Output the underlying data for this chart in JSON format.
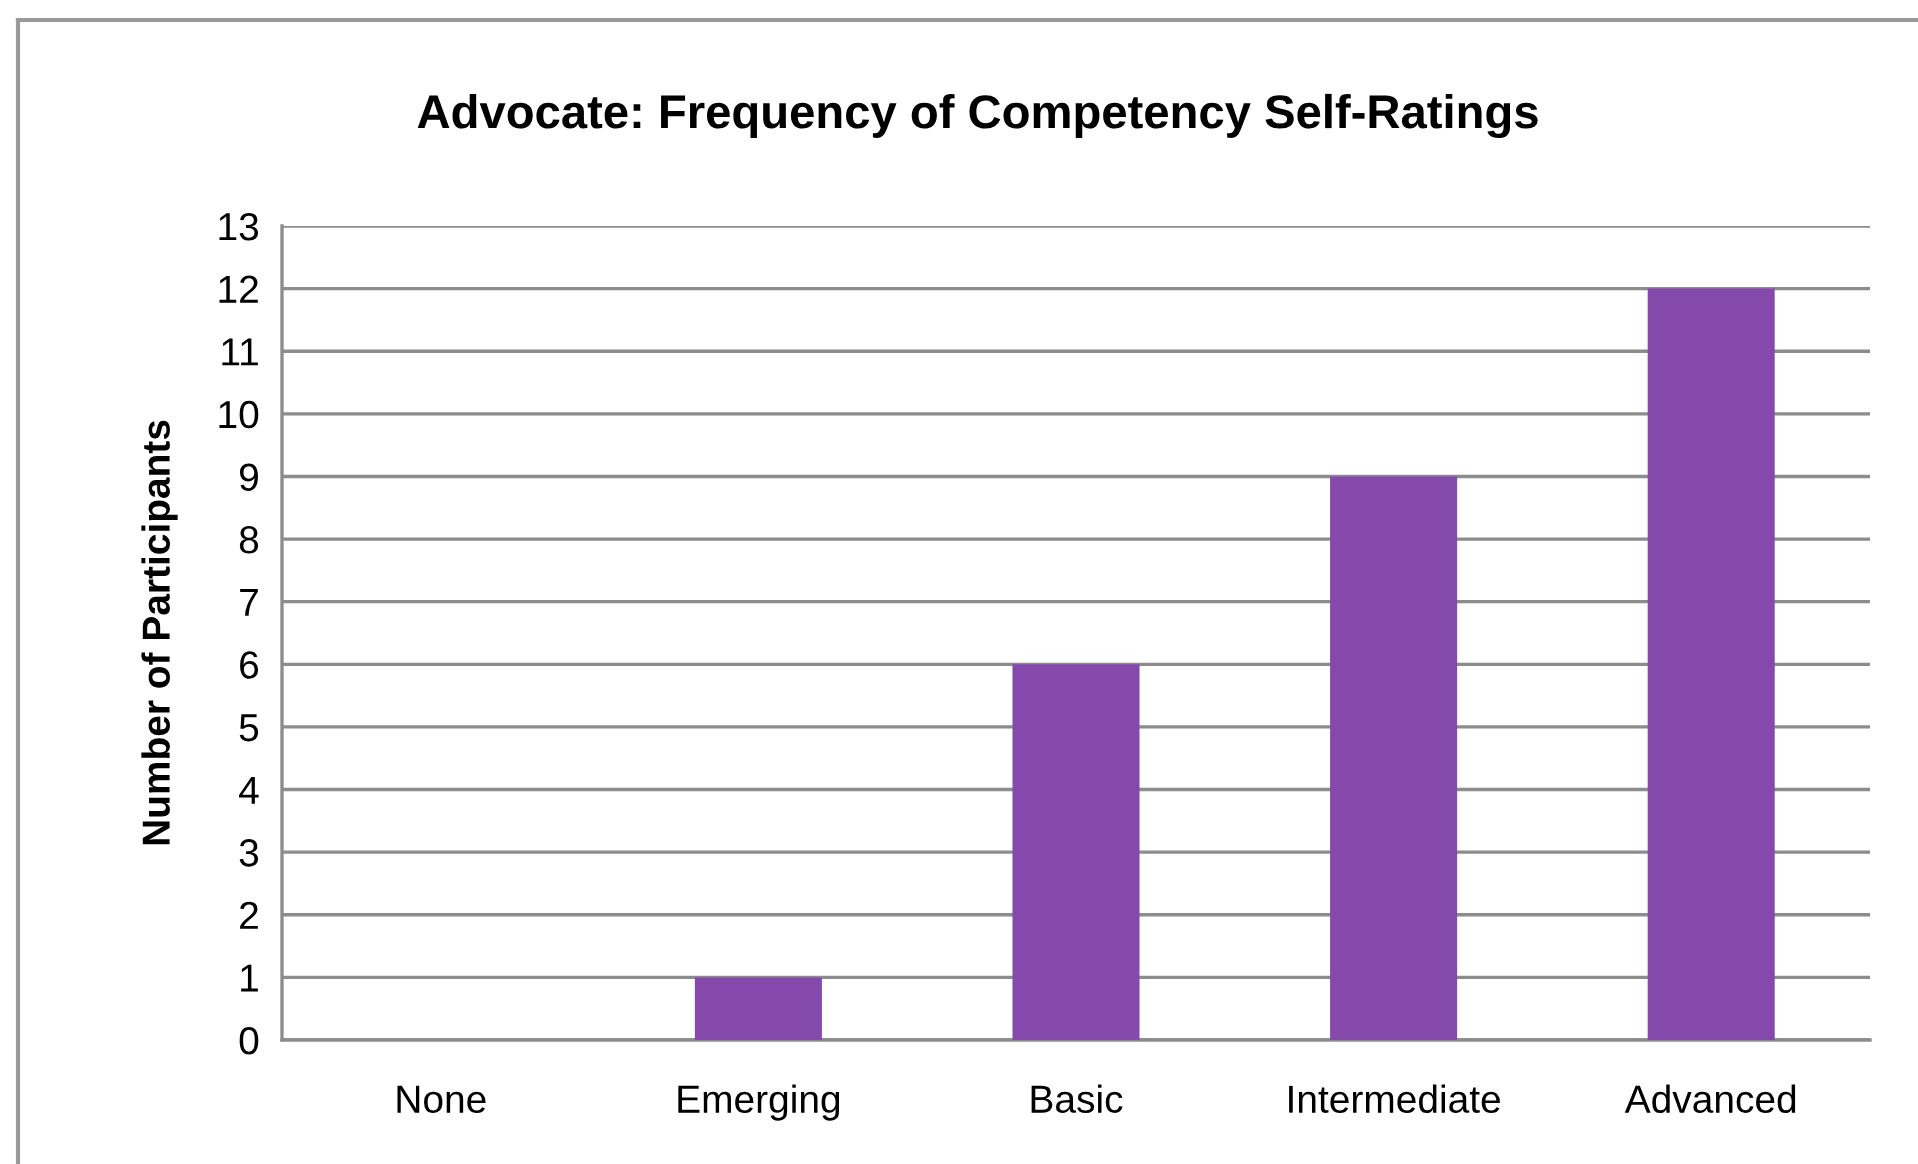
{
  "chart_data": {
    "type": "bar",
    "title": "Advocate: Frequency of Competency Self-Ratings",
    "ylabel": "Number of Participants",
    "categories": [
      "None",
      "Emerging",
      "Basic",
      "Intermediate",
      "Advanced"
    ],
    "values": [
      0,
      1,
      6,
      9,
      12
    ],
    "color": "#8549ac",
    "ylim": [
      0,
      13
    ],
    "yticks": [
      0,
      1,
      2,
      3,
      4,
      5,
      6,
      7,
      8,
      9,
      10,
      11,
      12,
      13
    ],
    "grid": "y",
    "legend": false
  }
}
